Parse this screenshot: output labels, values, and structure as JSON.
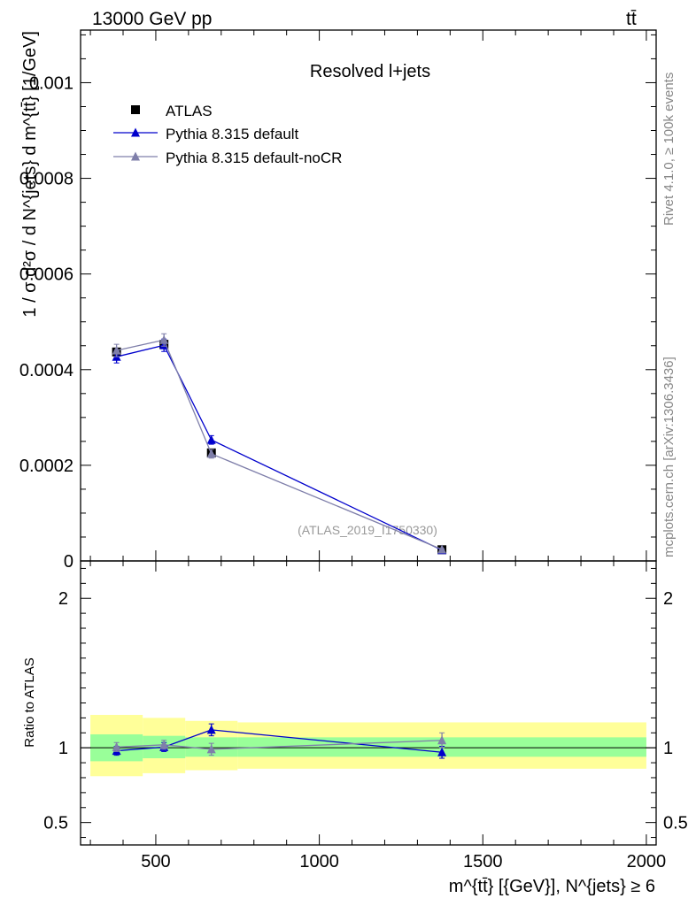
{
  "header": {
    "energy": "13000 GeV pp",
    "process": "tt̄"
  },
  "side": {
    "rivet": "Rivet 4.1.0, ≥ 100k events",
    "mcplots": "mcplots.cern.ch [arXiv:1306.3436]"
  },
  "chart_data": {
    "type": "scatter",
    "title": "Resolved l+jets",
    "watermark": "(ATLAS_2019_I1750330)",
    "xlabel": "m^{tt̄} [{GeV}], N^{jets} ≥ 6",
    "ylabel": "1 / σ d²σ / d N^{jets} d m^{tt̄} [1/GeV]",
    "ratio_ylabel": "Ratio to ATLAS",
    "xlim": [
      270,
      2030
    ],
    "ylim": [
      0,
      0.00111
    ],
    "ratio_ylim": [
      0.35,
      2.25
    ],
    "xticks": [
      500,
      1000,
      1500,
      2000
    ],
    "yticks": [
      0,
      0.0002,
      0.0004,
      0.0006,
      0.0008,
      0.001
    ],
    "ytick_labels": [
      "0",
      "0.0002",
      "0.0004",
      "0.0006",
      "0.0008",
      "0.001"
    ],
    "ratio_yticks": [
      0.5,
      1,
      2
    ],
    "ratio_ytick_labels": [
      "0.5",
      "1",
      "2"
    ],
    "bins": [
      [
        300,
        460
      ],
      [
        460,
        590
      ],
      [
        590,
        750
      ],
      [
        750,
        2000
      ]
    ],
    "x": [
      380,
      525,
      670,
      1375
    ],
    "series": [
      {
        "name": "ATLAS",
        "color": "#000000",
        "marker": "square",
        "values": [
          0.000437,
          0.000453,
          0.000226,
          2.35e-05
        ]
      },
      {
        "name": "Pythia 8.315 default",
        "color": "#0000cc",
        "marker": "triangle",
        "values": [
          0.000427,
          0.000451,
          0.000253,
          2.26e-05
        ],
        "ratio": [
          0.98,
          1.005,
          1.12,
          0.97
        ],
        "ratio_err": [
          0.03,
          0.03,
          0.04,
          0.04
        ]
      },
      {
        "name": "Pythia 8.315 default-noCR",
        "color": "#7f7faa",
        "marker": "triangle",
        "values": [
          0.00044,
          0.000462,
          0.000224,
          2.4e-05
        ],
        "ratio": [
          1.005,
          1.02,
          0.99,
          1.05
        ],
        "ratio_err": [
          0.03,
          0.03,
          0.04,
          0.05
        ]
      }
    ],
    "main_err": [
      1.3e-05,
      1.3e-05,
      9e-06,
      1.5e-06
    ],
    "uncertainty_bands": {
      "inner_color": "#99ff99",
      "outer_color": "#ffff99",
      "inner": [
        [
          0.91,
          1.09
        ],
        [
          0.93,
          1.08
        ],
        [
          0.94,
          1.07
        ],
        [
          0.94,
          1.07
        ]
      ],
      "outer": [
        [
          0.81,
          1.22
        ],
        [
          0.83,
          1.2
        ],
        [
          0.85,
          1.18
        ],
        [
          0.86,
          1.17
        ]
      ]
    }
  }
}
